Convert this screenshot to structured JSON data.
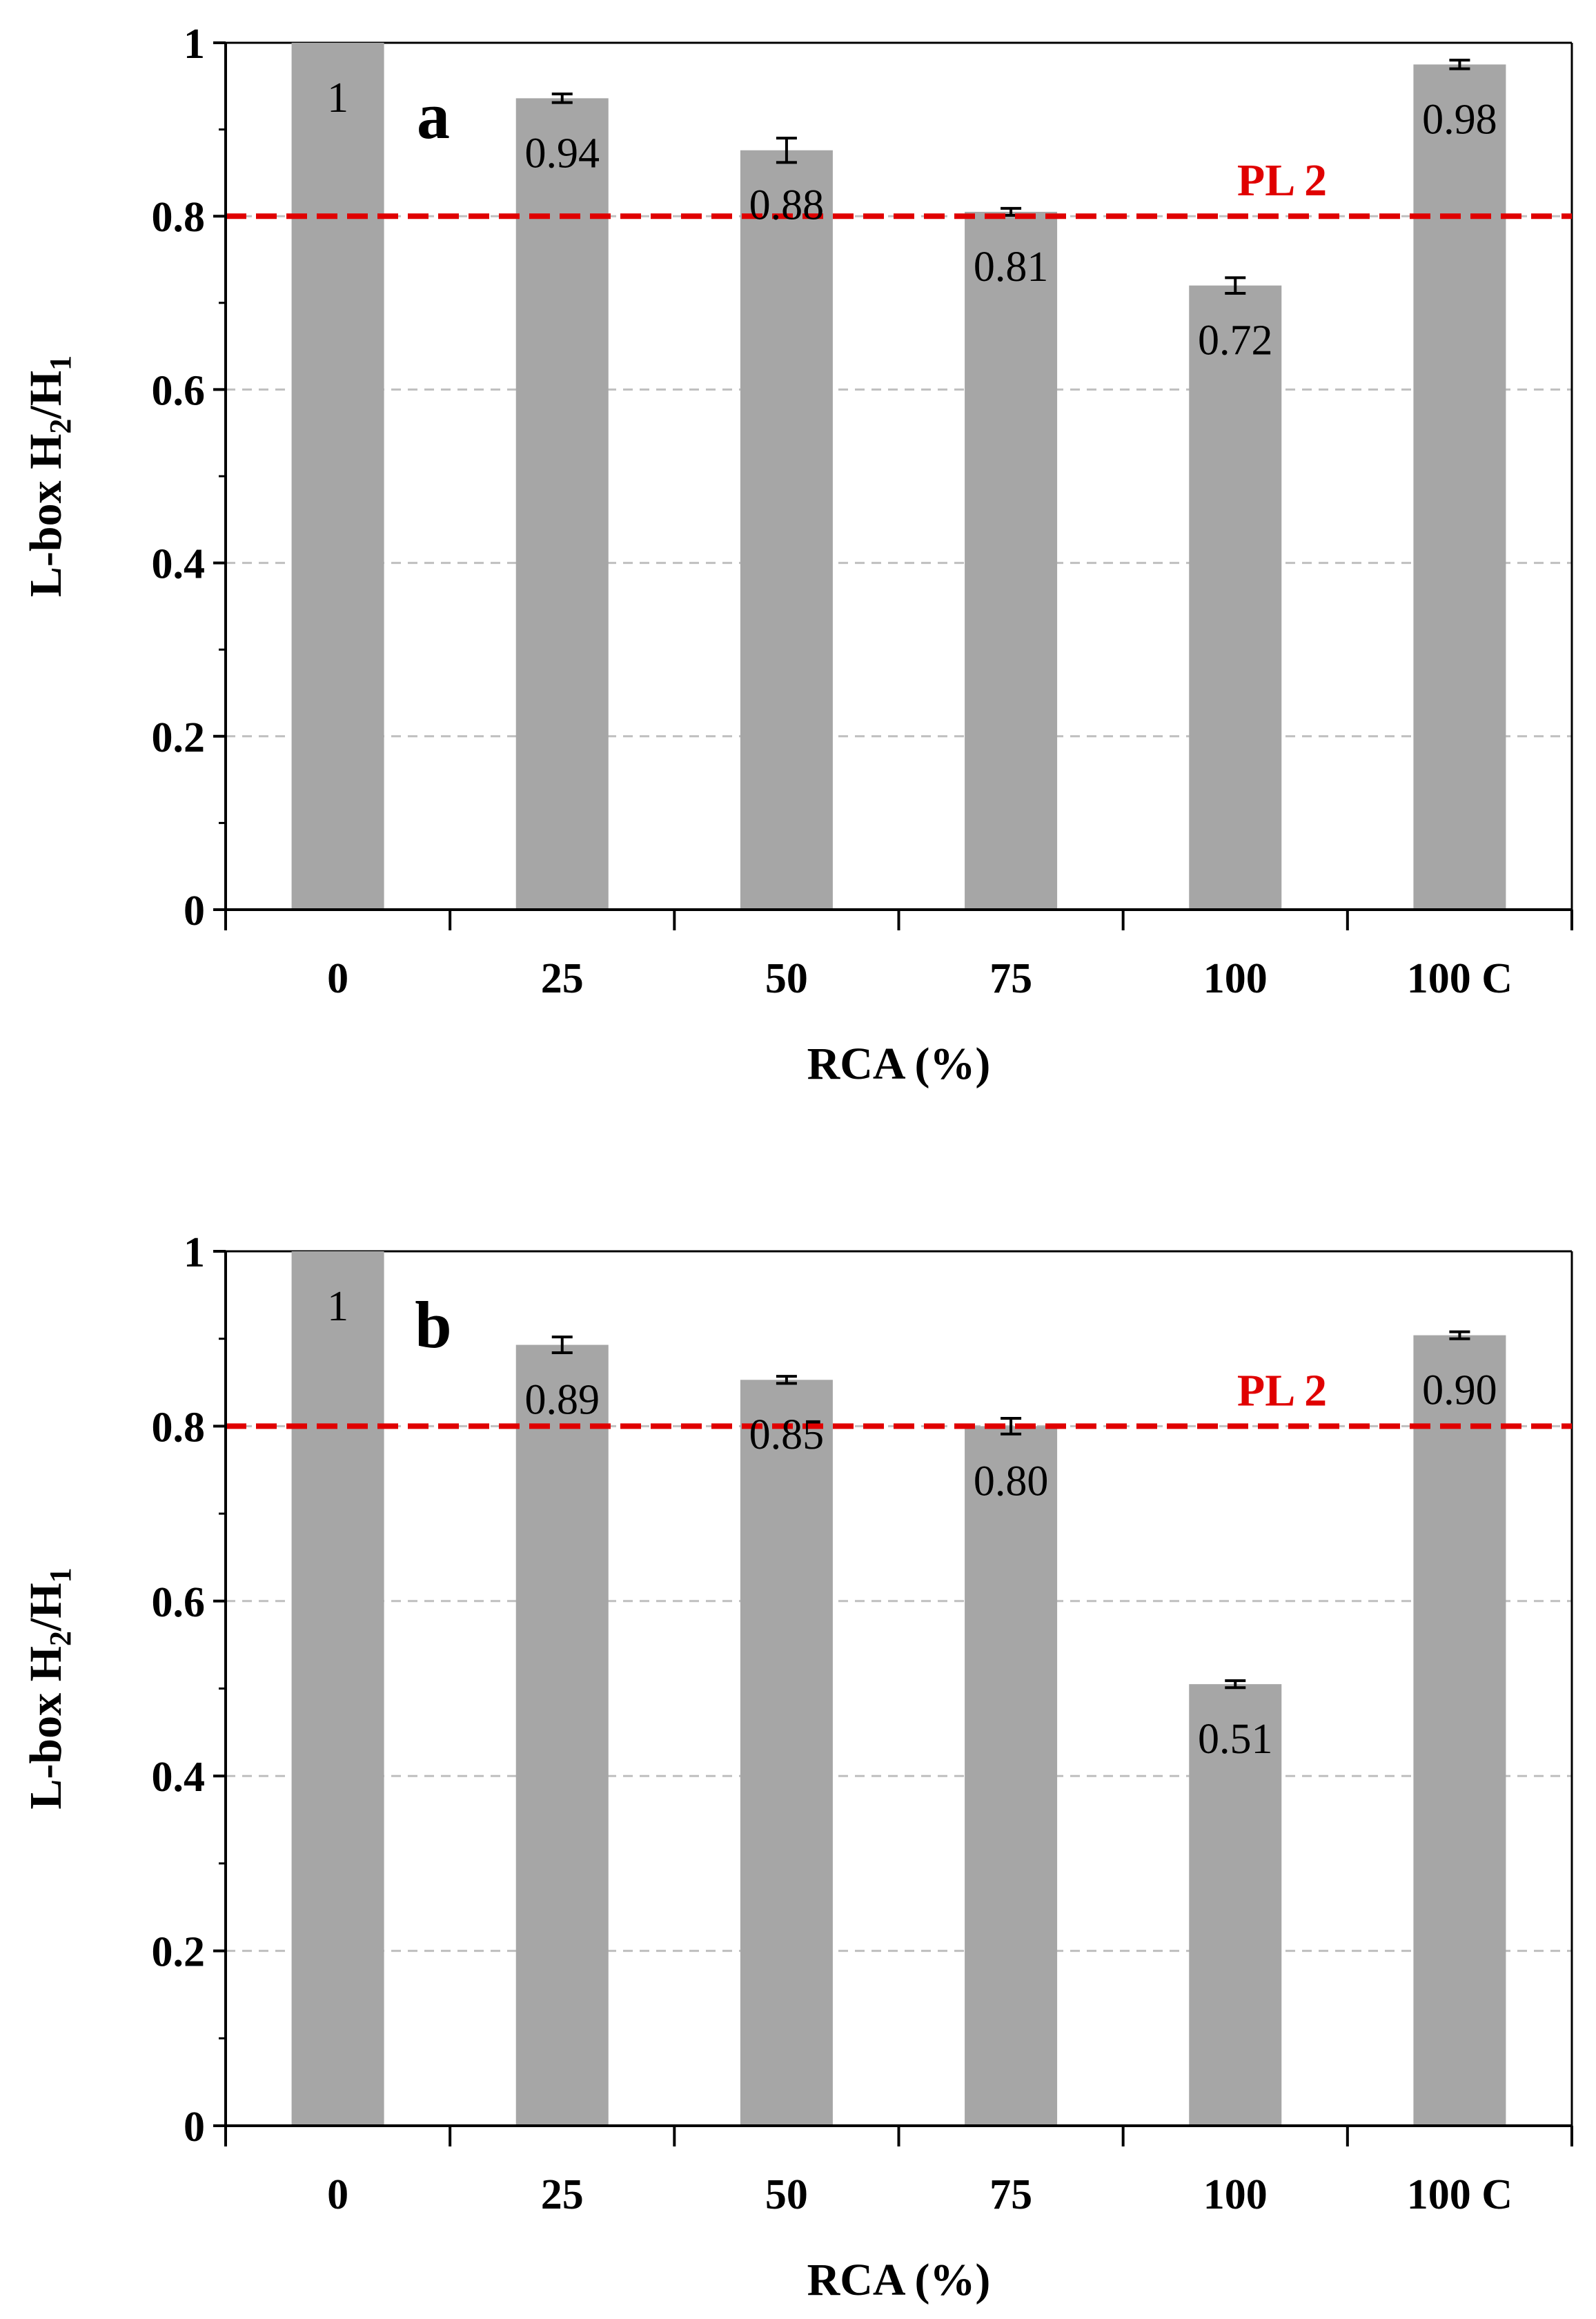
{
  "colors": {
    "bar": "#a6a6a6",
    "pl_line": "#e00000",
    "grid": "#bfbfbf",
    "axis": "#000000"
  },
  "chart_data": [
    {
      "type": "bar",
      "panel_label": "a",
      "categories": [
        "0",
        "25",
        "50",
        "75",
        "100",
        "100 C"
      ],
      "values": [
        1.0,
        0.936,
        0.876,
        0.805,
        0.72,
        0.975
      ],
      "errors": [
        0.0,
        0.005,
        0.014,
        0.004,
        0.009,
        0.005
      ],
      "value_labels": [
        "1",
        "0.94",
        "0.88",
        "0.81",
        "0.72",
        "0.98"
      ],
      "xlabel": "RCA (%)",
      "ylabel_parts": [
        "L-box H",
        "2",
        "/H",
        "1"
      ],
      "ylim": [
        0,
        1
      ],
      "yticks": [
        0,
        0.2,
        0.4,
        0.6,
        0.8,
        1
      ],
      "ytick_labels": [
        "0",
        "0.2",
        "0.4",
        "0.6",
        "0.8",
        "1"
      ],
      "grid": true,
      "reference_line": {
        "value": 0.8,
        "label": "PL 2"
      }
    },
    {
      "type": "bar",
      "panel_label": "b",
      "categories": [
        "0",
        "25",
        "50",
        "75",
        "100",
        "100 C"
      ],
      "values": [
        1.0,
        0.893,
        0.853,
        0.8,
        0.505,
        0.904
      ],
      "errors": [
        0.0,
        0.009,
        0.004,
        0.009,
        0.004,
        0.004
      ],
      "value_labels": [
        "1",
        "0.89",
        "0.85",
        "0.80",
        "0.51",
        "0.90"
      ],
      "xlabel": "RCA (%)",
      "ylabel_parts": [
        "L-box H",
        "2",
        "/H",
        "1"
      ],
      "ylim": [
        0,
        1
      ],
      "yticks": [
        0,
        0.2,
        0.4,
        0.6,
        0.8,
        1
      ],
      "ytick_labels": [
        "0",
        "0.2",
        "0.4",
        "0.6",
        "0.8",
        "1"
      ],
      "grid": true,
      "reference_line": {
        "value": 0.8,
        "label": "PL 2"
      }
    }
  ]
}
